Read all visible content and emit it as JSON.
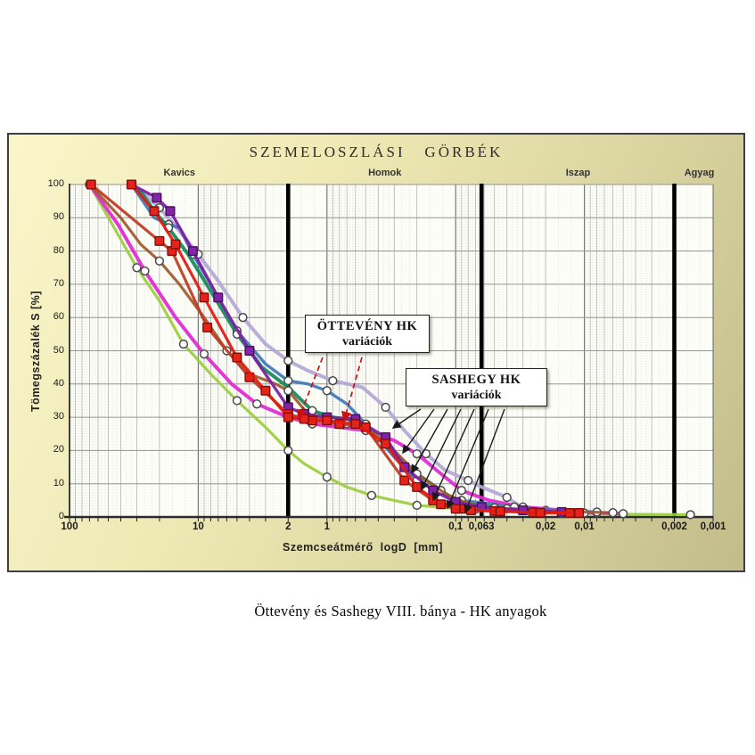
{
  "panel_colors": {
    "gradient_light": "#faf6ca",
    "gradient_dark": "#c2bc8a",
    "border": "#3f3f3f",
    "plot_background": "#fdfdf8"
  },
  "caption": "Öttevény és Sashegy VIII. bánya - HK anyagok",
  "chart_data": {
    "type": "line",
    "title": "SZEMELOSZLÁSI   GÖRBÉK",
    "xlabel": "Szemcseátmérő  logD  [mm]",
    "ylabel": "Tömegszázalék  S [%]",
    "x_scale": "log10-reversed",
    "xlim": [
      100,
      0.001
    ],
    "ylim": [
      0,
      100
    ],
    "grid": true,
    "x_ticks": [
      {
        "v": 100,
        "label": "100"
      },
      {
        "v": 10,
        "label": "10"
      },
      {
        "v": 2,
        "label": "2"
      },
      {
        "v": 1,
        "label": "1"
      },
      {
        "v": 0.1,
        "label": "0,1"
      },
      {
        "v": 0.063,
        "label": "0,063"
      },
      {
        "v": 0.02,
        "label": "0,02"
      },
      {
        "v": 0.01,
        "label": "0,01"
      },
      {
        "v": 0.002,
        "label": "0,002"
      },
      {
        "v": 0.001,
        "label": "0,001"
      }
    ],
    "y_ticks": [
      0,
      10,
      20,
      30,
      40,
      50,
      60,
      70,
      80,
      90,
      100
    ],
    "zone_labels": [
      {
        "label": "Kavics",
        "at": 14
      },
      {
        "label": "Homok",
        "at": 0.355
      },
      {
        "label": "Iszap",
        "at": 0.0112
      },
      {
        "label": "Agyag",
        "at": 0.00128
      }
    ],
    "boundary_lines_mm": [
      2,
      0.063,
      0.002
    ],
    "series": [
      {
        "group": "SASHEGY HK",
        "id": "sashegy-lavender",
        "color": "#b4a7d6",
        "width": 4,
        "marker": "circle",
        "marker_fill": "#ffffff",
        "marker_stroke": "#4a4a4a",
        "marker_every": 2,
        "points": [
          [
            33,
            100
          ],
          [
            26,
            97
          ],
          [
            20,
            93
          ],
          [
            14,
            86
          ],
          [
            10,
            79
          ],
          [
            7,
            71
          ],
          [
            4.5,
            60
          ],
          [
            3,
            52
          ],
          [
            2,
            47
          ],
          [
            1.4,
            44
          ],
          [
            0.9,
            41
          ],
          [
            0.53,
            39
          ],
          [
            0.35,
            33
          ],
          [
            0.25,
            26
          ],
          [
            0.17,
            19
          ],
          [
            0.12,
            14
          ],
          [
            0.08,
            11
          ],
          [
            0.063,
            9
          ],
          [
            0.04,
            5.9
          ],
          [
            0.03,
            2.7
          ],
          [
            0.02,
            2
          ],
          [
            0.012,
            1.5
          ],
          [
            0.008,
            1.2
          ]
        ]
      },
      {
        "group": "SASHEGY HK",
        "id": "sashegy-yellowgreen",
        "color": "#9bcf3c",
        "width": 3.2,
        "marker": "circle",
        "marker_fill": "#ffffff",
        "marker_stroke": "#4a4a4a",
        "marker_every": 2,
        "points": [
          [
            70,
            100
          ],
          [
            45,
            87
          ],
          [
            30,
            75
          ],
          [
            20,
            65
          ],
          [
            13,
            52
          ],
          [
            8,
            43
          ],
          [
            5,
            35
          ],
          [
            3,
            27
          ],
          [
            2,
            20
          ],
          [
            1.5,
            16
          ],
          [
            1,
            12
          ],
          [
            0.7,
            9
          ],
          [
            0.45,
            6.5
          ],
          [
            0.3,
            5
          ],
          [
            0.2,
            3.5
          ],
          [
            0.12,
            2.8
          ],
          [
            0.07,
            2.3
          ],
          [
            0.04,
            2
          ],
          [
            0.015,
            1
          ],
          [
            0.004,
            0.8
          ],
          [
            0.0015,
            0.7
          ]
        ]
      },
      {
        "group": "SASHEGY HK",
        "id": "sashegy-magenta",
        "color": "#e02ad2",
        "width": 4,
        "marker": "circle",
        "marker_fill": "#ffffff",
        "marker_stroke": "#4a4a4a",
        "marker_every": 2,
        "points": [
          [
            70,
            100
          ],
          [
            42,
            88
          ],
          [
            26,
            74
          ],
          [
            15,
            60
          ],
          [
            9,
            49
          ],
          [
            5.5,
            40
          ],
          [
            3.5,
            34
          ],
          [
            2,
            30
          ],
          [
            1.3,
            28
          ],
          [
            0.8,
            27
          ],
          [
            0.5,
            26
          ],
          [
            0.3,
            23
          ],
          [
            0.2,
            19
          ],
          [
            0.13,
            13
          ],
          [
            0.09,
            8
          ],
          [
            0.055,
            5
          ],
          [
            0.03,
            3
          ],
          [
            0.015,
            2
          ],
          [
            0.008,
            1.3
          ],
          [
            0.005,
            1
          ]
        ]
      },
      {
        "group": "SASHEGY HK",
        "id": "sashegy-blue",
        "color": "#3e7ab8",
        "width": 3.4,
        "marker": "circle",
        "marker_fill": "#ffffff",
        "marker_stroke": "#4a4a4a",
        "marker_every": 2,
        "points": [
          [
            33,
            100
          ],
          [
            22,
            90
          ],
          [
            17,
            88
          ],
          [
            14,
            87
          ],
          [
            11,
            79
          ],
          [
            8,
            70
          ],
          [
            5,
            56
          ],
          [
            3,
            46
          ],
          [
            2,
            41
          ],
          [
            1.4,
            40
          ],
          [
            1,
            38
          ],
          [
            0.7,
            34
          ],
          [
            0.5,
            28
          ],
          [
            0.3,
            18
          ],
          [
            0.2,
            11
          ],
          [
            0.13,
            7
          ],
          [
            0.09,
            5
          ],
          [
            0.06,
            4.2
          ],
          [
            0.035,
            3
          ],
          [
            0.02,
            2.2
          ],
          [
            0.008,
            1.5
          ]
        ]
      },
      {
        "group": "SASHEGY HK",
        "id": "sashegy-seagreen",
        "color": "#168a5a",
        "width": 4,
        "marker": "circle",
        "marker_fill": "#ffffff",
        "marker_stroke": "#4a4a4a",
        "marker_every": 3,
        "points": [
          [
            33,
            100
          ],
          [
            27,
            97
          ],
          [
            22,
            92
          ],
          [
            17,
            87
          ],
          [
            12,
            79
          ],
          [
            8,
            68
          ],
          [
            5,
            55
          ],
          [
            3.2,
            45
          ],
          [
            2,
            39
          ],
          [
            1.3,
            32
          ],
          [
            0.9,
            30
          ],
          [
            0.6,
            29
          ],
          [
            0.4,
            24
          ],
          [
            0.3,
            19
          ],
          [
            0.2,
            13
          ],
          [
            0.13,
            8
          ],
          [
            0.1,
            5
          ],
          [
            0.07,
            3.5
          ],
          [
            0.04,
            2.5
          ],
          [
            0.02,
            1.8
          ],
          [
            0.01,
            1.2
          ]
        ]
      },
      {
        "group": "SASHEGY HK",
        "id": "sashegy-brown",
        "color": "#a05a2c",
        "width": 3.2,
        "marker": "circle",
        "marker_fill": "#ffffff",
        "marker_stroke": "#4a4a4a",
        "marker_every": 3,
        "points": [
          [
            70,
            100
          ],
          [
            40,
            90
          ],
          [
            28,
            82
          ],
          [
            20,
            77
          ],
          [
            14,
            70
          ],
          [
            9,
            60
          ],
          [
            6,
            50
          ],
          [
            4,
            43
          ],
          [
            2.5,
            40
          ],
          [
            2,
            38
          ],
          [
            1.4,
            31
          ],
          [
            1,
            29
          ],
          [
            0.7,
            28
          ],
          [
            0.45,
            26
          ],
          [
            0.3,
            20
          ],
          [
            0.2,
            13
          ],
          [
            0.12,
            7
          ],
          [
            0.08,
            4
          ],
          [
            0.05,
            2.8
          ],
          [
            0.025,
            2
          ],
          [
            0.012,
            1.6
          ],
          [
            0.006,
            1.3
          ]
        ]
      },
      {
        "group": "ÖTTEVÉNY HK",
        "id": "otteveny-purple",
        "color": "#7d1fa6",
        "width": 3.4,
        "marker": "square",
        "marker_fill": "#8224a8",
        "marker_stroke": "#47105e",
        "marker_every": 1,
        "points": [
          [
            33,
            100
          ],
          [
            21,
            96
          ],
          [
            16.5,
            92
          ],
          [
            11,
            80
          ],
          [
            7,
            66
          ],
          [
            4,
            50
          ],
          [
            2,
            33
          ],
          [
            1.5,
            31
          ],
          [
            1,
            30
          ],
          [
            0.6,
            29.5
          ],
          [
            0.35,
            24
          ],
          [
            0.25,
            15
          ],
          [
            0.15,
            8
          ],
          [
            0.1,
            4.5
          ],
          [
            0.063,
            3
          ],
          [
            0.03,
            2
          ],
          [
            0.015,
            1.5
          ]
        ]
      },
      {
        "group": "ÖTTEVÉNY HK",
        "id": "otteveny-brick",
        "color": "#bf3a22",
        "width": 3.2,
        "marker": "square",
        "marker_fill": "#e6231a",
        "marker_stroke": "#7d0f08",
        "marker_every": 1,
        "points": [
          [
            68,
            100
          ],
          [
            20,
            83
          ],
          [
            16,
            80
          ],
          [
            8.5,
            57
          ],
          [
            4,
            42
          ],
          [
            2,
            31
          ],
          [
            1.3,
            29
          ],
          [
            0.8,
            28
          ],
          [
            0.5,
            27
          ],
          [
            0.25,
            11
          ],
          [
            0.15,
            5
          ],
          [
            0.09,
            2.5
          ],
          [
            0.05,
            1.8
          ],
          [
            0.025,
            1.4
          ],
          [
            0.013,
            1.2
          ]
        ]
      },
      {
        "group": "ÖTTEVÉNY HK",
        "id": "otteveny-red",
        "color": "#e3190f",
        "width": 3.2,
        "marker": "square",
        "marker_fill": "#e6231a",
        "marker_stroke": "#7d0f08",
        "marker_every": 1,
        "points": [
          [
            33,
            100
          ],
          [
            22,
            92
          ],
          [
            15,
            82
          ],
          [
            9,
            66
          ],
          [
            5,
            48
          ],
          [
            3,
            38
          ],
          [
            2,
            30
          ],
          [
            1.5,
            29.5
          ],
          [
            1,
            29
          ],
          [
            0.6,
            28
          ],
          [
            0.35,
            22
          ],
          [
            0.2,
            9
          ],
          [
            0.13,
            3.8
          ],
          [
            0.1,
            2.5
          ],
          [
            0.076,
            2
          ],
          [
            0.045,
            1.7
          ],
          [
            0.022,
            1.3
          ],
          [
            0.011,
            1.2
          ]
        ]
      }
    ],
    "annotations": [
      {
        "id": "otteveny",
        "line1": "ÖTTEVÉNY HK",
        "line2": "variációk",
        "arrow_color": "#cc1111"
      },
      {
        "id": "sashegy",
        "line1": "SASHEGY HK",
        "line2": "variációk",
        "arrow_color": "#1a1a1a"
      }
    ]
  }
}
